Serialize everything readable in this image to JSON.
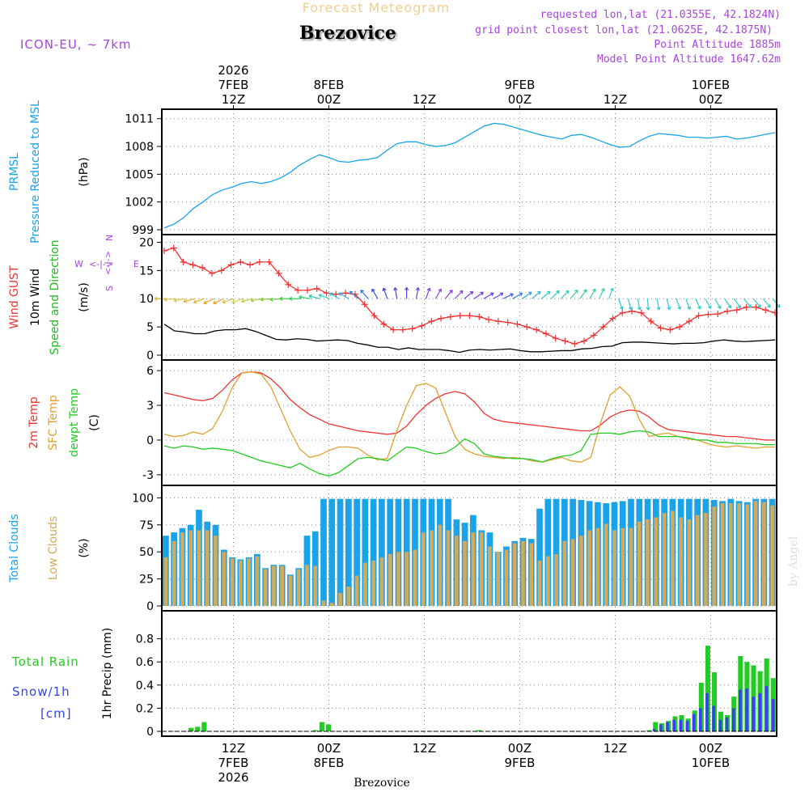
{
  "header": {
    "product": "Forecast Meteogram",
    "location": "Brezovice",
    "model": "ICON-EU, ~ 7km",
    "requested": "requested lon,lat (21.0355E, 42.1824N)",
    "gridpoint": "grid point closest lon,lat (21.0625E, 42.1875N)",
    "point_alt": "Point Altitude 1885m",
    "model_alt": "Model Point Altitude 1647.62m",
    "credit": "by Angel",
    "footer_location": "Brezovice"
  },
  "colors": {
    "pressure": "#1aa3e8",
    "gust": "#ee3333",
    "wind": "#000000",
    "dir_label": "#22bb22",
    "temp": "#ee3333",
    "sfc": "#e0a030",
    "dew": "#22cc22",
    "total_clouds": "#1aa3e8",
    "low_clouds": "#d4aa5a",
    "rain": "#22cc22",
    "snow": "#3344ee",
    "purple": "#aa44dd",
    "grid": "#555555"
  },
  "time_axis": {
    "hours": 64,
    "top_labels": [
      {
        "hour": 9,
        "lines": [
          "2026",
          "7FEB",
          "12Z"
        ]
      },
      {
        "hour": 21,
        "lines": [
          "8FEB",
          "00Z"
        ]
      },
      {
        "hour": 33,
        "lines": [
          "12Z"
        ]
      },
      {
        "hour": 45,
        "lines": [
          "9FEB",
          "00Z"
        ]
      },
      {
        "hour": 57,
        "lines": [
          "12Z"
        ]
      },
      {
        "hour": 69,
        "lines": [
          "10FEB",
          "00Z"
        ]
      }
    ],
    "bottom_labels": [
      {
        "hour": 9,
        "lines": [
          "12Z",
          "7FEB",
          "2026"
        ]
      },
      {
        "hour": 21,
        "lines": [
          "00Z",
          "8FEB"
        ]
      },
      {
        "hour": 33,
        "lines": [
          "12Z"
        ]
      },
      {
        "hour": 45,
        "lines": [
          "00Z",
          "9FEB"
        ]
      },
      {
        "hour": 57,
        "lines": [
          "12Z"
        ]
      },
      {
        "hour": 69,
        "lines": [
          "00Z",
          "10FEB"
        ]
      }
    ]
  },
  "chart_data": [
    {
      "type": "line",
      "id": "pressure",
      "ylabel_lines": [
        "PRMSL",
        "Pressure Reduced to MSL"
      ],
      "unit": "(hPa)",
      "yticks": [
        999,
        1002,
        1005,
        1008,
        1011
      ],
      "ylim": [
        999,
        1011.5
      ],
      "x_start_hour": 0,
      "series": [
        {
          "name": "PRMSL",
          "values": [
            999.2,
            999.6,
            1000.3,
            1001.3,
            1002.0,
            1002.8,
            1003.3,
            1003.6,
            1004.0,
            1004.2,
            1004.0,
            1004.2,
            1004.6,
            1005.2,
            1006.0,
            1006.6,
            1007.1,
            1006.8,
            1006.4,
            1006.3,
            1006.5,
            1006.6,
            1006.8,
            1007.6,
            1008.3,
            1008.5,
            1008.5,
            1008.2,
            1008.0,
            1008.1,
            1008.4,
            1009.0,
            1009.6,
            1010.2,
            1010.5,
            1010.4,
            1010.1,
            1009.8,
            1009.5,
            1009.2,
            1009.0,
            1008.8,
            1009.2,
            1009.3,
            1009.0,
            1008.6,
            1008.2,
            1007.9,
            1008.0,
            1008.6,
            1009.1,
            1009.4,
            1009.3,
            1009.2,
            1009.0,
            1009.0,
            1008.9,
            1009.0,
            1009.1,
            1008.8,
            1008.9,
            1009.1,
            1009.3,
            1009.5
          ]
        }
      ]
    },
    {
      "type": "line",
      "id": "wind",
      "ylabel_lines": [
        "Wind GUST",
        "10m Wind",
        "Speed and Direction"
      ],
      "unit": "(m/s)",
      "compass": {
        "w": "W",
        "e": "E",
        "n": "N",
        "s": "S",
        "arrow": "<-|->"
      },
      "yticks": [
        0,
        5,
        10,
        15,
        20
      ],
      "ylim": [
        0,
        20.5
      ],
      "arrow_level": 10,
      "x_start_hour": 0,
      "series": [
        {
          "name": "Wind GUST",
          "values": [
            18.5,
            19.0,
            16.5,
            16.0,
            15.5,
            14.5,
            15.0,
            16.0,
            16.5,
            16.0,
            16.5,
            16.5,
            14.5,
            12.5,
            11.5,
            11.5,
            11.8,
            11.0,
            10.8,
            11.0,
            10.8,
            9.0,
            7.0,
            5.5,
            4.5,
            4.5,
            4.7,
            5.2,
            6.0,
            6.5,
            6.8,
            7.0,
            7.0,
            6.8,
            6.3,
            6.0,
            5.8,
            5.5,
            5.0,
            4.5,
            3.8,
            3.0,
            2.5,
            2.0,
            2.5,
            3.5,
            5.0,
            6.5,
            7.5,
            7.8,
            7.5,
            6.0,
            4.8,
            4.5,
            5.0,
            6.0,
            7.0,
            7.2,
            7.3,
            7.8,
            8.0,
            8.5,
            8.5,
            8.0,
            7.5
          ]
        },
        {
          "name": "10m Wind",
          "values": [
            5.5,
            4.3,
            4.1,
            3.8,
            3.8,
            4.3,
            4.5,
            4.5,
            4.7,
            4.2,
            3.5,
            2.8,
            2.7,
            2.9,
            2.8,
            2.5,
            2.6,
            2.7,
            2.6,
            2.1,
            1.8,
            1.4,
            1.4,
            1.0,
            1.3,
            1.0,
            1.0,
            1.0,
            0.8,
            0.5,
            0.9,
            1.0,
            0.9,
            1.0,
            1.1,
            0.8,
            0.6,
            0.6,
            0.7,
            0.8,
            0.8,
            1.1,
            1.2,
            1.5,
            1.6,
            2.2,
            2.3,
            2.3,
            2.2,
            2.1,
            2.0,
            2.1,
            2.1,
            2.2,
            2.5,
            2.7,
            2.5,
            2.4,
            2.5,
            2.6,
            2.7
          ]
        }
      ],
      "wind_dir_deg": [
        270,
        265,
        260,
        255,
        250,
        245,
        245,
        250,
        250,
        255,
        260,
        265,
        265,
        270,
        270,
        280,
        285,
        290,
        300,
        300,
        310,
        320,
        330,
        340,
        350,
        0,
        10,
        20,
        30,
        40,
        45,
        50,
        55,
        60,
        60,
        65,
        60,
        55,
        50,
        50,
        45,
        45,
        40,
        35,
        30,
        25,
        20,
        160,
        165,
        170,
        175,
        170,
        165,
        160,
        160,
        155,
        150,
        150,
        145,
        145,
        140,
        140,
        140,
        140
      ],
      "wind_arrow_colors": [
        "#e0c040",
        "#e0c040",
        "#e0c040",
        "#e8b030",
        "#e8b030",
        "#f0a020",
        "#f0a020",
        "#e0c040",
        "#d0d040",
        "#c0d040",
        "#a0d040",
        "#80cc40",
        "#60cc40",
        "#40cc40",
        "#30cc60",
        "#30cc80",
        "#30ccaa",
        "#30cccc",
        "#30c0e0",
        "#30b0e0",
        "#3090e0",
        "#3070e0",
        "#3050e0",
        "#4040e0",
        "#5040e0",
        "#6040e0",
        "#7040e0",
        "#8040e0",
        "#9040e0",
        "#9040e0",
        "#9040e0",
        "#8040e0",
        "#7040e0",
        "#6040e0",
        "#5050e0",
        "#4060e0",
        "#3080e0",
        "#30a0e0",
        "#30c0e0",
        "#30cccc",
        "#30ccbb",
        "#40ccaa",
        "#40cc99",
        "#40cc88",
        "#40cc88",
        "#40ccaa",
        "#40cccc",
        "#30cccc",
        "#30cccc",
        "#30cccc",
        "#30cccc",
        "#30cccc",
        "#30cccc",
        "#30cccc",
        "#30cccc",
        "#30cccc",
        "#30cccc",
        "#30cccc",
        "#30cccc",
        "#30cccc",
        "#30cccc",
        "#30cccc",
        "#30cccc",
        "#30cccc"
      ]
    },
    {
      "type": "line",
      "id": "temperature",
      "ylabel_lines": [
        "2m Temp",
        "SFC Temp",
        "dewpt Temp"
      ],
      "unit": "(C)",
      "yticks": [
        -3,
        0,
        3,
        6
      ],
      "ylim": [
        -3.5,
        6.5
      ],
      "x_start_hour": 0,
      "series": [
        {
          "name": "2m Temp",
          "values": [
            4.1,
            3.9,
            3.7,
            3.5,
            3.4,
            3.6,
            4.3,
            5.2,
            5.8,
            5.9,
            5.8,
            5.3,
            4.5,
            3.5,
            2.8,
            2.2,
            1.8,
            1.4,
            1.2,
            1.0,
            0.8,
            0.7,
            0.6,
            0.5,
            0.6,
            1.2,
            2.2,
            3.0,
            3.6,
            4.0,
            4.2,
            4.0,
            3.3,
            2.3,
            1.8,
            1.6,
            1.5,
            1.4,
            1.3,
            1.2,
            1.1,
            1.0,
            0.9,
            0.8,
            0.8,
            1.3,
            2.0,
            2.4,
            2.6,
            2.5,
            2.0,
            1.3,
            0.9,
            0.8,
            0.7,
            0.6,
            0.5,
            0.4,
            0.3,
            0.3,
            0.2,
            0.1,
            0.0,
            0.0
          ]
        },
        {
          "name": "SFC Temp",
          "values": [
            0.5,
            0.3,
            0.4,
            0.7,
            0.5,
            1.0,
            2.5,
            4.5,
            5.8,
            5.9,
            5.7,
            4.6,
            2.7,
            0.8,
            -0.8,
            -1.5,
            -1.3,
            -0.9,
            -0.6,
            -0.6,
            -0.7,
            -1.3,
            -1.7,
            -1.6,
            0.8,
            3.0,
            4.7,
            4.9,
            4.5,
            2.4,
            0.3,
            -0.8,
            -1.2,
            -1.4,
            -1.5,
            -1.6,
            -1.5,
            -1.6,
            -1.8,
            -1.9,
            -1.7,
            -1.5,
            -1.8,
            -1.9,
            -1.5,
            1.5,
            3.9,
            4.6,
            3.8,
            1.8,
            0.3,
            0.5,
            0.6,
            0.3,
            0.1,
            0.0,
            -0.3,
            -0.5,
            -0.6,
            -0.5,
            -0.6,
            -0.7,
            -0.6,
            -0.6
          ]
        },
        {
          "name": "dewpt Temp",
          "values": [
            -0.5,
            -0.7,
            -0.5,
            -0.6,
            -0.8,
            -0.7,
            -0.8,
            -0.9,
            -1.2,
            -1.5,
            -1.8,
            -2.0,
            -2.2,
            -2.4,
            -2.0,
            -2.5,
            -2.9,
            -3.1,
            -2.8,
            -2.2,
            -1.6,
            -1.5,
            -1.6,
            -1.8,
            -1.2,
            -0.6,
            -0.7,
            -1.0,
            -1.2,
            -1.1,
            -0.6,
            0.1,
            -0.3,
            -1.2,
            -1.4,
            -1.5,
            -1.6,
            -1.6,
            -1.7,
            -1.9,
            -1.6,
            -1.4,
            -1.3,
            -0.9,
            0.5,
            0.6,
            0.6,
            0.5,
            0.7,
            0.8,
            0.7,
            0.3,
            0.3,
            0.3,
            0.2,
            0.0,
            0.0,
            -0.2,
            -0.2,
            -0.3,
            -0.3,
            -0.3,
            -0.4,
            -0.4
          ]
        }
      ]
    },
    {
      "type": "bar",
      "id": "clouds",
      "ylabel_lines": [
        "Total Clouds",
        "Low Clouds"
      ],
      "unit": "(%)",
      "yticks": [
        0,
        25,
        50,
        75,
        100
      ],
      "ylim": [
        0,
        107
      ],
      "x_start_hour": 0,
      "series": [
        {
          "name": "Total Clouds",
          "values": [
            65,
            68,
            72,
            75,
            89,
            78,
            75,
            52,
            45,
            43,
            45,
            48,
            35,
            38,
            38,
            29,
            35,
            65,
            69,
            99,
            99,
            99,
            99,
            99,
            99,
            99,
            99,
            99,
            99,
            99,
            99,
            99,
            99,
            99,
            99,
            80,
            77,
            84,
            70,
            68,
            50,
            55,
            60,
            63,
            62,
            90,
            99,
            99,
            99,
            99,
            98,
            97,
            96,
            95,
            96,
            97,
            99,
            99,
            99,
            99,
            99,
            99,
            99,
            99,
            99,
            99,
            98,
            97,
            99,
            97,
            96,
            99,
            99,
            99
          ]
        },
        {
          "name": "Low Clouds",
          "values": [
            45,
            60,
            68,
            70,
            70,
            70,
            65,
            50,
            44,
            42,
            44,
            46,
            34,
            37,
            37,
            28,
            34,
            38,
            37,
            5,
            3,
            12,
            18,
            28,
            40,
            42,
            45,
            48,
            50,
            50,
            52,
            68,
            70,
            75,
            70,
            65,
            60,
            68,
            68,
            55,
            50,
            52,
            58,
            60,
            58,
            42,
            46,
            48,
            60,
            62,
            65,
            70,
            72,
            76,
            70,
            72,
            72,
            78,
            80,
            82,
            86,
            88,
            82,
            80,
            84,
            86,
            92,
            95,
            95,
            95,
            94,
            97,
            96,
            93
          ]
        }
      ]
    },
    {
      "type": "bar",
      "id": "precip",
      "ylabel_lines": [
        "Total Rain",
        "Snow/1h",
        "[cm]"
      ],
      "unit": "1hr Precip (mm)",
      "yticks": [
        0,
        0.2,
        0.4,
        0.6,
        0.8
      ],
      "ylim": [
        0,
        1.0
      ],
      "x_start_hour": 0,
      "series": [
        {
          "name": "Total Rain",
          "values": [
            0,
            0,
            0,
            0,
            0.03,
            0.04,
            0.08,
            0,
            0,
            0,
            0,
            0,
            0,
            0,
            0,
            0,
            0,
            0,
            0,
            0,
            0,
            0,
            0,
            0.01,
            0.08,
            0.06,
            0,
            0,
            0,
            0,
            0,
            0,
            0,
            0,
            0,
            0,
            0,
            0,
            0,
            0,
            0,
            0,
            0,
            0,
            0,
            0,
            0,
            0,
            0.01,
            0,
            0,
            0,
            0,
            0,
            0,
            0,
            0,
            0,
            0,
            0,
            0,
            0,
            0,
            0,
            0,
            0,
            0,
            0,
            0,
            0,
            0,
            0,
            0,
            0,
            0.01,
            0.08,
            0.07,
            0.09,
            0.13,
            0.14,
            0.11,
            0.18,
            0.42,
            0.74,
            0.51,
            0.17,
            0.14,
            0.3,
            0.65,
            0.6,
            0.57,
            0.52,
            0.63,
            0.46
          ]
        },
        {
          "name": "Snow/1h",
          "values": [
            0,
            0,
            0,
            0,
            0,
            0,
            0,
            0,
            0,
            0,
            0,
            0,
            0,
            0,
            0,
            0,
            0,
            0,
            0,
            0,
            0,
            0,
            0,
            0,
            0,
            0,
            0,
            0,
            0,
            0,
            0,
            0,
            0,
            0,
            0,
            0,
            0,
            0,
            0,
            0,
            0,
            0,
            0,
            0,
            0,
            0,
            0,
            0,
            0,
            0,
            0,
            0,
            0,
            0,
            0,
            0,
            0,
            0,
            0,
            0,
            0,
            0,
            0,
            0,
            0,
            0,
            0,
            0,
            0,
            0,
            0,
            0,
            0,
            0,
            0.02,
            0.06,
            0.08,
            0.1,
            0.1,
            0.09,
            0.15,
            0.2,
            0.33,
            0.22,
            0.1,
            0.12,
            0.2,
            0.36,
            0.37,
            0.3,
            0.33,
            0.39,
            0.28
          ]
        }
      ]
    }
  ]
}
